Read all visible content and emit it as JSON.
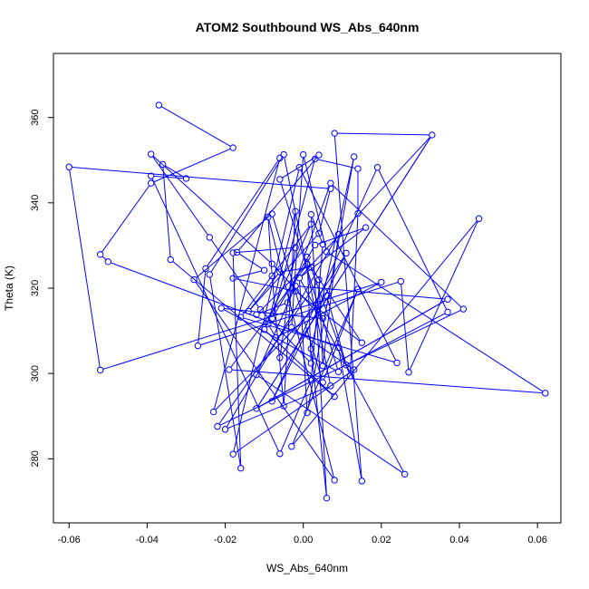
{
  "chart_data": {
    "type": "scatter",
    "title": "ATOM2 Southbound WS_Abs_640nm",
    "xlabel": "WS_Abs_640nm",
    "ylabel": "Theta (K)",
    "xlim": [
      -0.064,
      0.066
    ],
    "ylim": [
      265,
      375
    ],
    "x_ticks": [
      -0.06,
      -0.04,
      -0.02,
      0.0,
      0.02,
      0.04,
      0.06
    ],
    "x_tick_labels": [
      "-0.06",
      "-0.04",
      "-0.02",
      "0.00",
      "0.02",
      "0.04",
      "0.06"
    ],
    "y_ticks": [
      280,
      300,
      320,
      340,
      360
    ],
    "y_tick_labels": [
      "280",
      "300",
      "320",
      "340",
      "360"
    ],
    "grid": false,
    "connected": true,
    "marker": "open-circle",
    "color": "#0000ff",
    "points": [
      {
        "x": 0.006,
        "y": 270.8
      },
      {
        "x": 0.015,
        "y": 274.8
      },
      {
        "x": 0.008,
        "y": 275.0
      },
      {
        "x": 0.026,
        "y": 276.4
      },
      {
        "x": -0.016,
        "y": 277.8
      },
      {
        "x": -0.006,
        "y": 281.2
      },
      {
        "x": -0.018,
        "y": 281.1
      },
      {
        "x": -0.003,
        "y": 282.9
      },
      {
        "x": -0.02,
        "y": 286.9
      },
      {
        "x": -0.022,
        "y": 287.6
      },
      {
        "x": 0.001,
        "y": 290.8
      },
      {
        "x": -0.023,
        "y": 291.0
      },
      {
        "x": -0.012,
        "y": 291.8
      },
      {
        "x": -0.005,
        "y": 292.4
      },
      {
        "x": -0.008,
        "y": 293.5
      },
      {
        "x": 0.008,
        "y": 294.6
      },
      {
        "x": 0.062,
        "y": 295.4
      },
      {
        "x": 0.007,
        "y": 297.1
      },
      {
        "x": 0.005,
        "y": 297.9
      },
      {
        "x": 0.002,
        "y": 298.4
      },
      {
        "x": 0.012,
        "y": 299.4
      },
      {
        "x": -0.012,
        "y": 299.7
      },
      {
        "x": 0.027,
        "y": 300.3
      },
      {
        "x": 0.009,
        "y": 300.4
      },
      {
        "x": -0.052,
        "y": 300.8
      },
      {
        "x": -0.019,
        "y": 300.9
      },
      {
        "x": 0.013,
        "y": 300.9
      },
      {
        "x": 0.005,
        "y": 301.8
      },
      {
        "x": 0.011,
        "y": 302.0
      },
      {
        "x": 0.024,
        "y": 302.5
      },
      {
        "x": 0.002,
        "y": 302.4
      },
      {
        "x": -0.006,
        "y": 303.7
      },
      {
        "x": 0.002,
        "y": 305.8
      },
      {
        "x": 0.009,
        "y": 306.1
      },
      {
        "x": -0.027,
        "y": 306.5
      },
      {
        "x": 0.015,
        "y": 307.2
      },
      {
        "x": -0.007,
        "y": 308.4
      },
      {
        "x": -0.01,
        "y": 310.3
      },
      {
        "x": -0.003,
        "y": 310.8
      },
      {
        "x": -0.009,
        "y": 311.6
      },
      {
        "x": -0.016,
        "y": 313.2
      },
      {
        "x": 0.005,
        "y": 312.9
      },
      {
        "x": -0.008,
        "y": 312.9
      },
      {
        "x": -0.012,
        "y": 313.8
      },
      {
        "x": 0.037,
        "y": 314.4
      },
      {
        "x": -0.014,
        "y": 314.6
      },
      {
        "x": -0.011,
        "y": 315.0
      },
      {
        "x": -0.021,
        "y": 315.3
      },
      {
        "x": 0.041,
        "y": 315.1
      },
      {
        "x": -0.004,
        "y": 316.6
      },
      {
        "x": 0.037,
        "y": 317.4
      },
      {
        "x": 0.006,
        "y": 318.2
      },
      {
        "x": -0.002,
        "y": 319.3
      },
      {
        "x": 0.014,
        "y": 319.8
      },
      {
        "x": -0.002,
        "y": 320.5
      },
      {
        "x": 0.02,
        "y": 321.4
      },
      {
        "x": 0.025,
        "y": 321.6
      },
      {
        "x": -0.028,
        "y": 322.0
      },
      {
        "x": 0.004,
        "y": 322.0
      },
      {
        "x": -0.018,
        "y": 322.3
      },
      {
        "x": -0.001,
        "y": 322.4
      },
      {
        "x": -0.008,
        "y": 322.9
      },
      {
        "x": -0.024,
        "y": 323.2
      },
      {
        "x": -0.006,
        "y": 323.8
      },
      {
        "x": -0.01,
        "y": 324.2
      },
      {
        "x": -0.025,
        "y": 324.6
      },
      {
        "x": 0.002,
        "y": 324.9
      },
      {
        "x": 0.001,
        "y": 325.6
      },
      {
        "x": -0.008,
        "y": 325.7
      },
      {
        "x": -0.05,
        "y": 326.2
      },
      {
        "x": -0.034,
        "y": 326.7
      },
      {
        "x": 0.001,
        "y": 327.3
      },
      {
        "x": -0.052,
        "y": 327.9
      },
      {
        "x": 0.011,
        "y": 328.2
      },
      {
        "x": -0.018,
        "y": 328.3
      },
      {
        "x": -0.017,
        "y": 328.4
      },
      {
        "x": 0.006,
        "y": 328.5
      },
      {
        "x": -0.002,
        "y": 329.5
      },
      {
        "x": 0.003,
        "y": 330.1
      },
      {
        "x": 0.005,
        "y": 330.3
      },
      {
        "x": 0.004,
        "y": 332.8
      },
      {
        "x": 0.009,
        "y": 332.6
      },
      {
        "x": -0.024,
        "y": 331.9
      },
      {
        "x": 0.016,
        "y": 334.2
      },
      {
        "x": 0.002,
        "y": 335.0
      },
      {
        "x": -0.009,
        "y": 336.7
      },
      {
        "x": 0.045,
        "y": 336.3
      },
      {
        "x": 0.014,
        "y": 337.5
      },
      {
        "x": -0.008,
        "y": 337.4
      },
      {
        "x": 0.002,
        "y": 337.3
      },
      {
        "x": -0.002,
        "y": 338.0
      },
      {
        "x": 0.007,
        "y": 343.3
      },
      {
        "x": 0.007,
        "y": 344.6
      },
      {
        "x": -0.039,
        "y": 344.6
      },
      {
        "x": -0.03,
        "y": 345.7
      },
      {
        "x": -0.006,
        "y": 345.5
      },
      {
        "x": -0.039,
        "y": 346.3
      },
      {
        "x": 0.014,
        "y": 348.0
      },
      {
        "x": -0.001,
        "y": 348.3
      },
      {
        "x": 0.019,
        "y": 348.3
      },
      {
        "x": -0.06,
        "y": 348.4
      },
      {
        "x": -0.036,
        "y": 349.0
      },
      {
        "x": -0.006,
        "y": 350.5
      },
      {
        "x": 0.003,
        "y": 350.3
      },
      {
        "x": 0.013,
        "y": 350.8
      },
      {
        "x": -0.005,
        "y": 351.3
      },
      {
        "x": 0.004,
        "y": 351.2
      },
      {
        "x": 0.0,
        "y": 351.3
      },
      {
        "x": -0.039,
        "y": 351.4
      },
      {
        "x": -0.018,
        "y": 352.9
      },
      {
        "x": 0.033,
        "y": 355.9
      },
      {
        "x": 0.008,
        "y": 356.3
      },
      {
        "x": -0.037,
        "y": 362.9
      }
    ],
    "path_order": [
      112,
      109,
      93,
      72,
      69,
      33,
      1,
      111,
      110,
      12,
      50,
      54,
      21,
      3,
      60,
      10,
      104,
      32,
      0,
      89,
      79,
      19,
      5,
      96,
      94,
      101,
      70,
      15,
      37,
      84,
      40,
      29,
      98,
      6,
      26,
      38,
      107,
      76,
      16,
      25,
      67,
      43,
      49,
      92,
      48,
      9,
      58,
      27,
      81,
      8,
      17,
      105,
      62,
      4,
      74,
      77,
      31,
      73,
      14,
      99,
      44,
      28,
      51,
      11,
      102,
      65,
      34,
      56,
      22,
      86,
      7,
      53,
      18,
      88,
      57,
      2,
      85,
      61,
      13,
      90,
      39,
      36,
      55,
      24,
      100,
      91,
      80,
      45,
      63,
      66,
      35,
      52,
      59,
      64,
      75,
      106,
      95,
      23,
      47,
      41,
      68,
      108,
      82,
      46,
      30,
      71,
      20,
      87,
      97,
      103,
      42,
      78,
      83,
      60,
      110,
      12,
      50
    ]
  }
}
